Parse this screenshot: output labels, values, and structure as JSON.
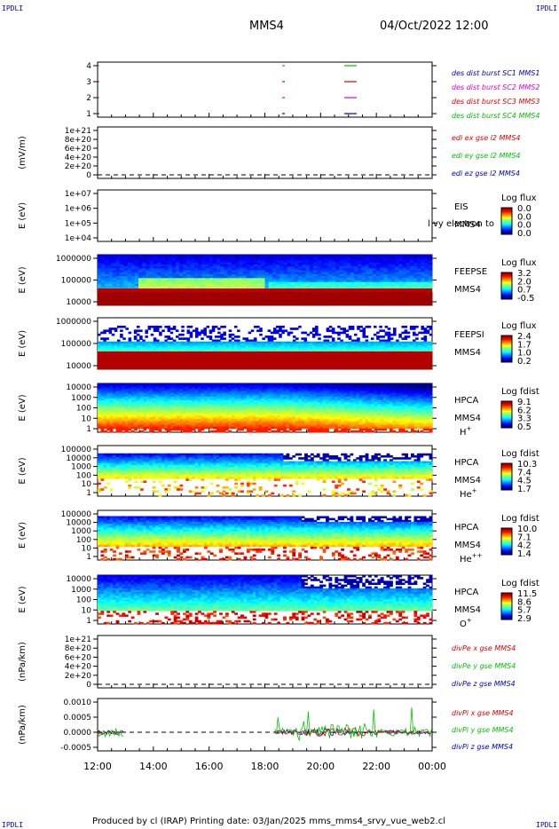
{
  "header": {
    "corner_label": "IPDLI",
    "spacecraft": "MMS4",
    "datetime": "04/Oct/2022 12:00"
  },
  "footer": {
    "text": "Produced by cl (IRAP)   Printing date: 03/Jan/2025   mms_mms4_srvy_vue_web2.cl"
  },
  "colors": {
    "mms1": "#0000c0",
    "mms2": "#e000e0",
    "mms3": "#e00000",
    "mms4": "#00c000"
  },
  "chart_data": [
    {
      "id": "burst",
      "type": "scatter",
      "ytick_labels": [
        "4",
        "3",
        "2",
        "1"
      ],
      "legend": [
        {
          "label": "des dist burst SC1 MMS1",
          "color": "#0000c0"
        },
        {
          "label": "des dist burst SC2 MMS2",
          "color": "#e000e0"
        },
        {
          "label": "des dist burst SC3 MMS3",
          "color": "#e00000"
        },
        {
          "label": "des dist burst SC4 MMS4",
          "color": "#00c000"
        }
      ]
    },
    {
      "id": "edi",
      "type": "line",
      "ylabel": "(mV/m)",
      "ytick_labels": [
        "1e+21",
        "8e+20",
        "6e+20",
        "4e+20",
        "2e+20",
        "0"
      ],
      "legend": [
        {
          "label": "edi ex gse l2 MMS4",
          "color": "#e00000"
        },
        {
          "label": "edi ey gse l2 MMS4",
          "color": "#00c000"
        },
        {
          "label": "edi ez gse l2 MMS4",
          "color": "#0000c0"
        }
      ]
    },
    {
      "id": "eis",
      "type": "heatmap",
      "ylabel": "E (eV)",
      "ytick_labels": [
        "1e+07",
        "1e+06",
        "1e+05",
        "1e+04"
      ],
      "instrument": "EIS",
      "overlay_text": "l vy electron to",
      "sc": "MMS4",
      "cbar_title": "Log flux",
      "cbar_ticks": [
        "0.0",
        "0.0",
        "0.0",
        "0.0"
      ]
    },
    {
      "id": "feepse",
      "type": "heatmap",
      "ylabel": "E (eV)",
      "ytick_labels": [
        "1000000",
        "100000",
        "10000"
      ],
      "instrument": "FEEPSE",
      "sc": "MMS4",
      "cbar_title": "Log flux",
      "cbar_ticks": [
        "3.2",
        "2.0",
        "0.7",
        "-0.5"
      ]
    },
    {
      "id": "feepsi",
      "type": "heatmap",
      "ylabel": "E (eV)",
      "ytick_labels": [
        "1000000",
        "100000",
        "10000"
      ],
      "instrument": "FEEPSI",
      "sc": "MMS4",
      "cbar_title": "Log flux",
      "cbar_ticks": [
        "2.4",
        "1.7",
        "1.0",
        "0.2"
      ]
    },
    {
      "id": "hpca_h",
      "type": "heatmap",
      "ylabel": "E (eV)",
      "ytick_labels": [
        "10000",
        "1000",
        "100",
        "10",
        "1"
      ],
      "instrument": "HPCA",
      "sc": "MMS4",
      "species": "H",
      "charge": "+",
      "cbar_title": "Log fdist",
      "cbar_ticks": [
        "9.1",
        "6.2",
        "3.3",
        "0.5"
      ]
    },
    {
      "id": "hpca_he",
      "type": "heatmap",
      "ylabel": "E (eV)",
      "ytick_labels": [
        "100000",
        "10000",
        "1000",
        "100",
        "10",
        "1"
      ],
      "instrument": "HPCA",
      "sc": "MMS4",
      "species": "He",
      "charge": "+",
      "cbar_title": "Log fdist",
      "cbar_ticks": [
        "10.3",
        "7.4",
        "4.5",
        "1.7"
      ]
    },
    {
      "id": "hpca_hepp",
      "type": "heatmap",
      "ylabel": "E (eV)",
      "ytick_labels": [
        "100000",
        "10000",
        "1000",
        "100",
        "10",
        "1"
      ],
      "instrument": "HPCA",
      "sc": "MMS4",
      "species": "He",
      "charge": "++",
      "cbar_title": "Log fdist",
      "cbar_ticks": [
        "10.0",
        "7.1",
        "4.2",
        "1.4"
      ]
    },
    {
      "id": "hpca_o",
      "type": "heatmap",
      "ylabel": "E (eV)",
      "ytick_labels": [
        "10000",
        "1000",
        "100",
        "10",
        "1"
      ],
      "instrument": "HPCA",
      "sc": "MMS4",
      "species": "O",
      "charge": "+",
      "cbar_title": "Log fdist",
      "cbar_ticks": [
        "11.5",
        "8.6",
        "5.7",
        "2.9"
      ]
    },
    {
      "id": "divpe",
      "type": "line",
      "ylabel": "(nPa/km)",
      "ytick_labels": [
        "1e+21",
        "8e+20",
        "6e+20",
        "4e+20",
        "2e+20",
        "0"
      ],
      "legend": [
        {
          "label": "divPe x gse MMS4",
          "color": "#e00000"
        },
        {
          "label": "divPe y gse MMS4",
          "color": "#00c000"
        },
        {
          "label": "divPe z gse MMS4",
          "color": "#0000c0"
        }
      ]
    },
    {
      "id": "divpi",
      "type": "line",
      "ylabel": "(nPa/km)",
      "ytick_labels": [
        "0.0010",
        "0.0005",
        "0.0000",
        "-0.0005"
      ],
      "yrange": [
        -0.0005,
        0.0011
      ],
      "legend": [
        {
          "label": "divPi x gse MMS4",
          "color": "#e00000"
        },
        {
          "label": "divPi y gse MMS4",
          "color": "#00c000"
        },
        {
          "label": "divPi z gse MMS4",
          "color": "#0000c0"
        }
      ]
    }
  ],
  "time_axis": {
    "tick_labels": [
      "12:00",
      "14:00",
      "16:00",
      "18:00",
      "20:00",
      "22:00",
      "00:00"
    ]
  }
}
